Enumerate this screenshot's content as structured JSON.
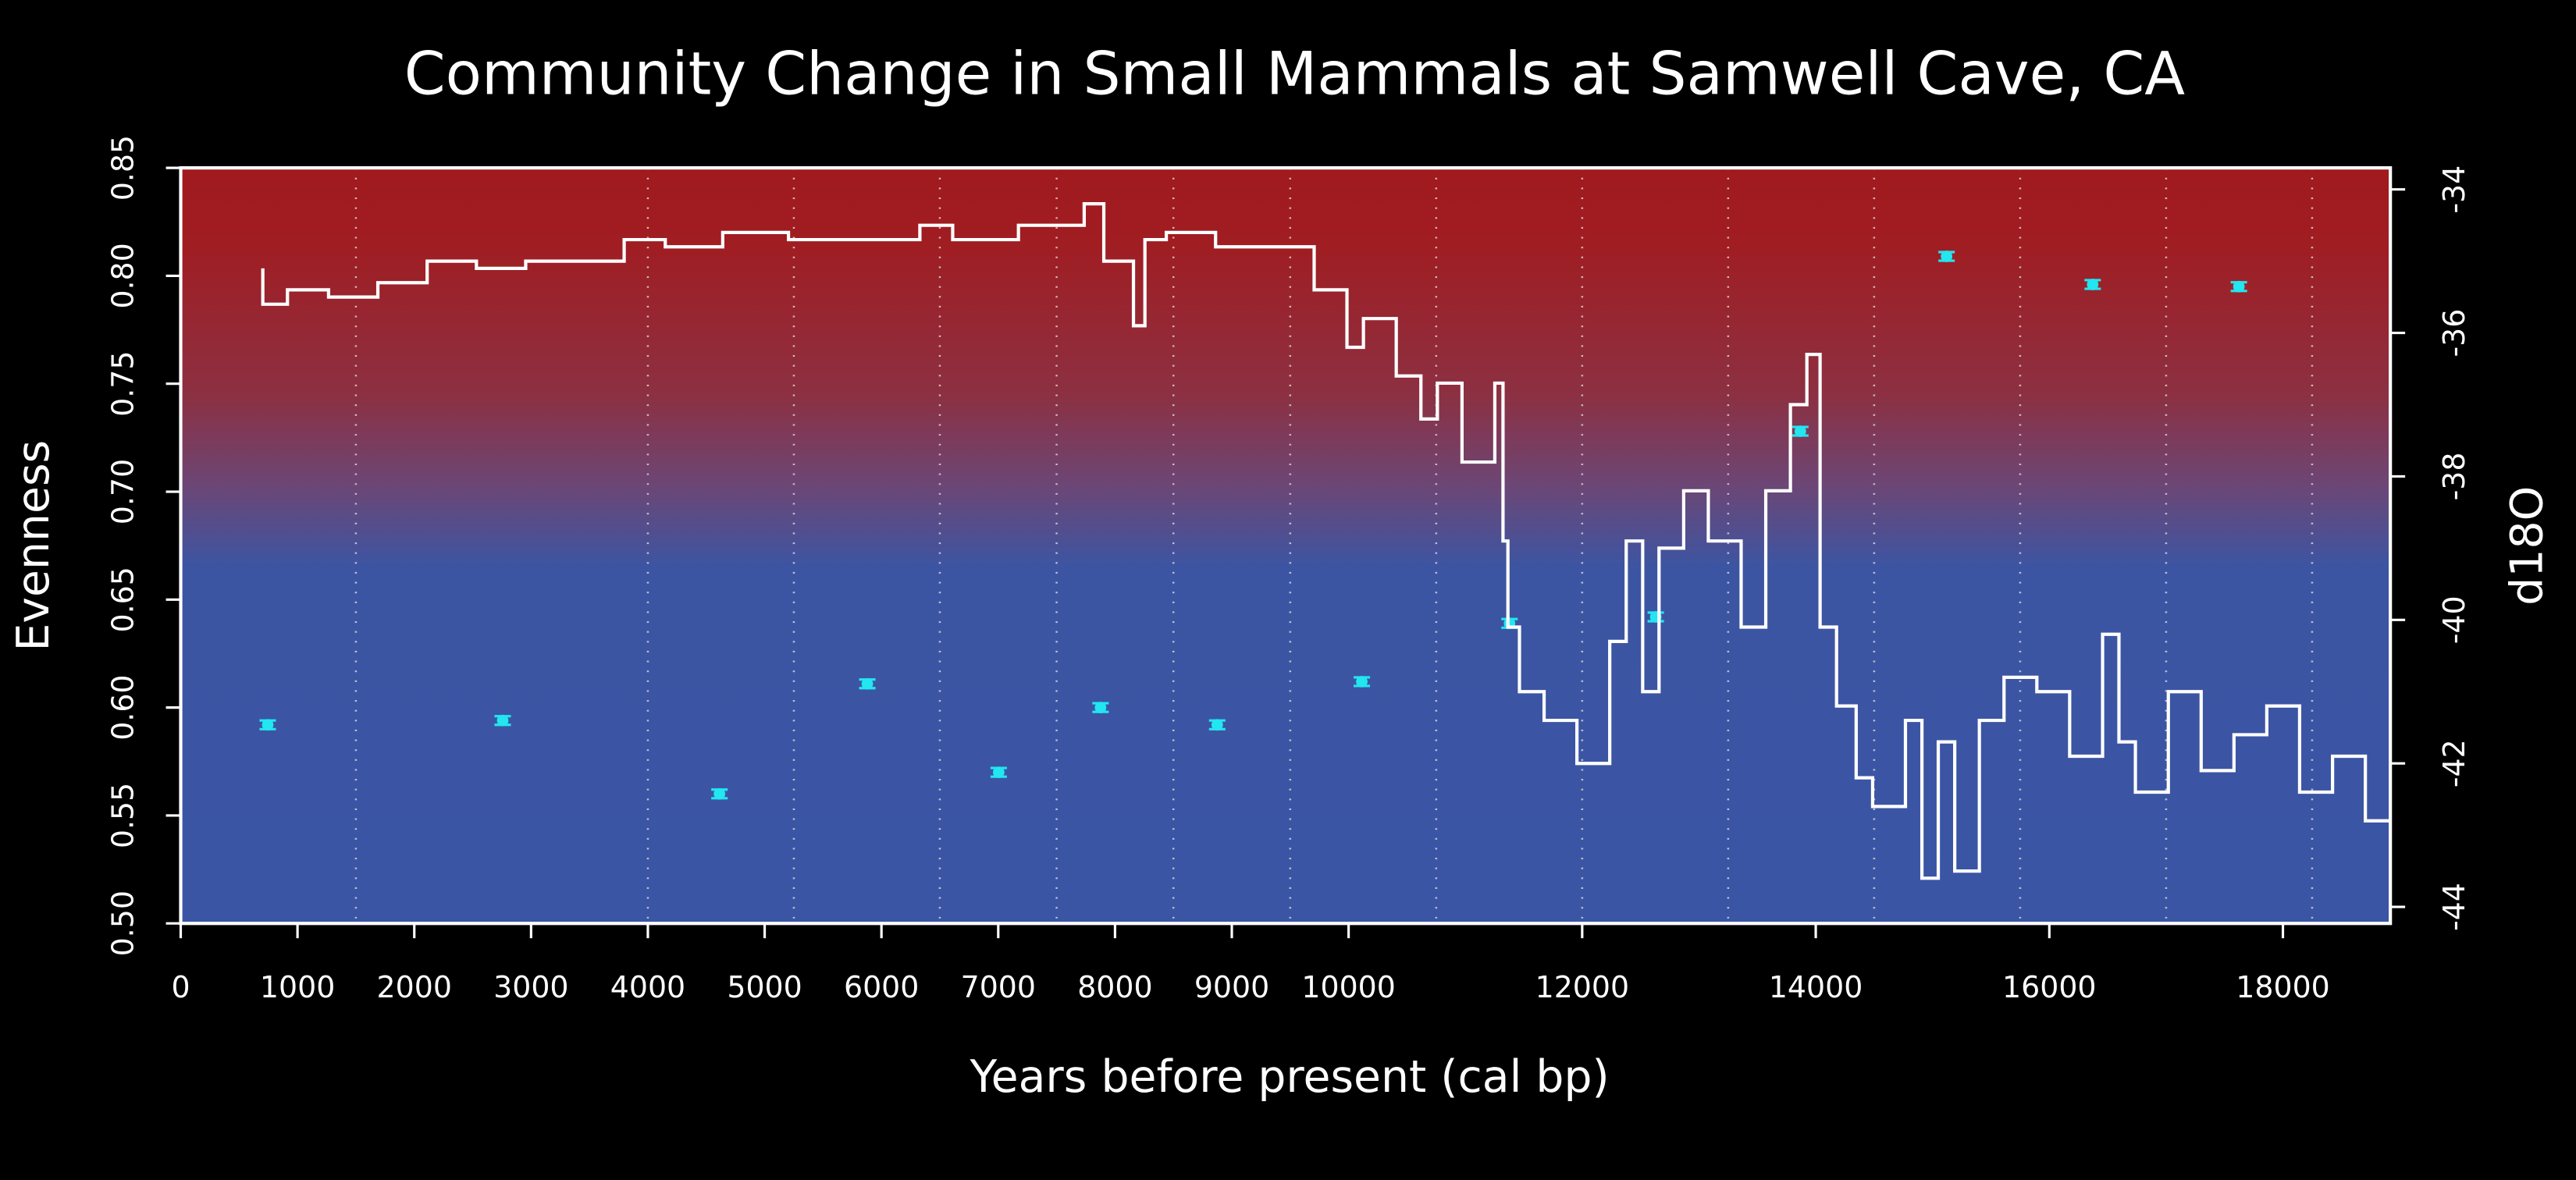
{
  "chart_data": {
    "type": "scatter_line",
    "title": "Community Change in Small Mammals at Samwell Cave, CA",
    "xlabel": "Years before present (cal bp)",
    "ylabel": "Evenness",
    "y2label": "d18O",
    "xlim": [
      0,
      18920
    ],
    "xticks": [
      0,
      1000,
      2000,
      3000,
      4000,
      5000,
      6000,
      7000,
      8000,
      9000,
      10000,
      12000,
      14000,
      16000,
      18000
    ],
    "ylim": [
      0.5,
      0.85
    ],
    "yticks": [
      {
        "value": 0.5,
        "label": "0.50"
      },
      0.55,
      {
        "value": 0.6,
        "label": "0.60"
      },
      0.65,
      {
        "value": 0.7,
        "label": "0.70"
      },
      0.75,
      {
        "value": 0.8,
        "label": "0.80"
      },
      0.85
    ],
    "y2lim": [
      -44.23,
      -33.7
    ],
    "y2ticks": [
      -44,
      -42,
      -40,
      -38,
      -36,
      -34
    ],
    "x_guides": [
      1500,
      4000,
      5250,
      6500,
      7500,
      8500,
      9500,
      10750,
      12000,
      13250,
      14500,
      15750,
      17000,
      18250
    ],
    "series": [
      {
        "name": "Evenness",
        "color": "#22e6f0",
        "axis": "y",
        "x": [
          745,
          2757,
          4613,
          5879,
          7004,
          7876,
          8875,
          10113,
          11378,
          12630,
          13868,
          15120,
          16371,
          17623
        ],
        "values": [
          0.592,
          0.594,
          0.56,
          0.611,
          0.57,
          0.6,
          0.592,
          0.612,
          0.639,
          0.642,
          0.728,
          0.809,
          0.796,
          0.795
        ],
        "errors": [
          0.002,
          0.002,
          0.002,
          0.002,
          0.002,
          0.002,
          0.002,
          0.002,
          0.002,
          0.002,
          0.002,
          0.002,
          0.002,
          0.002
        ]
      },
      {
        "name": "d18O",
        "color": "#ffffff",
        "axis": "y2",
        "x": [
          703,
          914,
          1266,
          1688,
          2110,
          2532,
          2954,
          3376,
          3797,
          4149,
          4641,
          5204,
          5767,
          6329,
          6610,
          7173,
          7736,
          7904,
          8158,
          8256,
          8439,
          8861,
          9283,
          9705,
          9986,
          10127,
          10408,
          10619,
          10760,
          10971,
          11252,
          11322,
          11364,
          11463,
          11674,
          11955,
          12236,
          12377,
          12518,
          12658,
          12869,
          13080,
          13361,
          13572,
          13783,
          13924,
          14037,
          14178,
          14346,
          14487,
          14768,
          14909,
          15049,
          15190,
          15401,
          15612,
          15893,
          16174,
          16456,
          16596,
          16737,
          17019,
          17300,
          17581,
          17862,
          18143,
          18425,
          18706,
          18917
        ],
        "values": [
          -35.1,
          -35.6,
          -35.4,
          -35.5,
          -35.3,
          -35.0,
          -35.1,
          -35.0,
          -35.0,
          -34.7,
          -34.8,
          -34.6,
          -34.7,
          -34.7,
          -34.5,
          -34.7,
          -34.5,
          -34.2,
          -35.0,
          -35.9,
          -34.7,
          -34.6,
          -34.8,
          -34.8,
          -35.4,
          -36.2,
          -35.8,
          -36.6,
          -37.2,
          -36.7,
          -37.8,
          -36.7,
          -38.9,
          -40.1,
          -41.0,
          -41.4,
          -42.0,
          -40.3,
          -38.9,
          -41.0,
          -39.0,
          -38.2,
          -38.9,
          -40.1,
          -38.2,
          -37.0,
          -36.3,
          -40.1,
          -41.2,
          -42.2,
          -42.6,
          -41.4,
          -43.6,
          -41.7,
          -43.5,
          -41.4,
          -40.8,
          -41.0,
          -41.9,
          -40.2,
          -41.7,
          -42.4,
          -41.0,
          -42.1,
          -41.6,
          -41.2,
          -42.4,
          -41.9,
          -42.8
        ]
      }
    ]
  }
}
